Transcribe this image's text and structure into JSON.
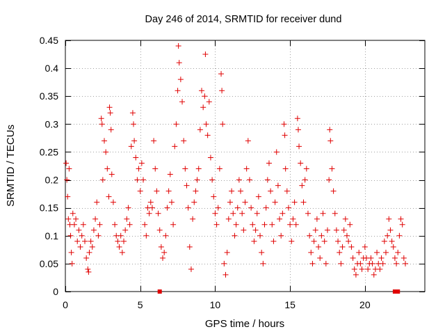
{
  "chart_data": {
    "type": "scatter",
    "title": "Day 246 of 2014, SRMTID for receiver dund",
    "xlabel": "GPS time / hours",
    "ylabel": "SRMTID / TECUs",
    "xlim": [
      0,
      24
    ],
    "ylim": [
      0,
      0.45
    ],
    "xticks": [
      0,
      5,
      10,
      15,
      20
    ],
    "yticks": [
      0,
      0.05,
      0.1,
      0.15,
      0.2,
      0.25,
      0.3,
      0.35,
      0.4,
      0.45
    ],
    "xtick_labels": [
      "0",
      "5",
      "10",
      "15",
      "20"
    ],
    "ytick_labels": [
      "0",
      "0.05",
      "0.1",
      "0.15",
      "0.2",
      "0.25",
      "0.3",
      "0.35",
      "0.4",
      "0.45"
    ],
    "grid": true,
    "marker": "+",
    "color": "#e00000",
    "series": [
      {
        "name": "SRMTID",
        "points": [
          [
            0.05,
            0.23
          ],
          [
            0.1,
            0.2
          ],
          [
            0.15,
            0.17
          ],
          [
            0.2,
            0.13
          ],
          [
            0.25,
            0.22
          ],
          [
            0.3,
            0.12
          ],
          [
            0.35,
            0.1
          ],
          [
            0.4,
            0.07
          ],
          [
            0.45,
            0.05
          ],
          [
            0.5,
            0.14
          ],
          [
            0.6,
            0.12
          ],
          [
            0.7,
            0.13
          ],
          [
            0.8,
            0.09
          ],
          [
            0.9,
            0.11
          ],
          [
            1.0,
            0.08
          ],
          [
            1.1,
            0.1
          ],
          [
            1.2,
            0.12
          ],
          [
            1.3,
            0.09
          ],
          [
            1.4,
            0.06
          ],
          [
            1.5,
            0.04
          ],
          [
            1.55,
            0.035
          ],
          [
            1.6,
            0.07
          ],
          [
            1.7,
            0.09
          ],
          [
            1.8,
            0.08
          ],
          [
            1.9,
            0.11
          ],
          [
            2.0,
            0.13
          ],
          [
            2.1,
            0.16
          ],
          [
            2.2,
            0.1
          ],
          [
            2.3,
            0.12
          ],
          [
            2.4,
            0.31
          ],
          [
            2.45,
            0.3
          ],
          [
            2.5,
            0.2
          ],
          [
            2.6,
            0.27
          ],
          [
            2.7,
            0.25
          ],
          [
            2.8,
            0.22
          ],
          [
            2.9,
            0.17
          ],
          [
            2.95,
            0.33
          ],
          [
            3.0,
            0.32
          ],
          [
            3.05,
            0.29
          ],
          [
            3.1,
            0.21
          ],
          [
            3.2,
            0.16
          ],
          [
            3.3,
            0.12
          ],
          [
            3.4,
            0.1
          ],
          [
            3.5,
            0.09
          ],
          [
            3.6,
            0.08
          ],
          [
            3.7,
            0.1
          ],
          [
            3.8,
            0.07
          ],
          [
            3.9,
            0.09
          ],
          [
            4.0,
            0.11
          ],
          [
            4.1,
            0.13
          ],
          [
            4.2,
            0.15
          ],
          [
            4.3,
            0.12
          ],
          [
            4.4,
            0.26
          ],
          [
            4.5,
            0.32
          ],
          [
            4.55,
            0.3
          ],
          [
            4.6,
            0.27
          ],
          [
            4.7,
            0.24
          ],
          [
            4.8,
            0.2
          ],
          [
            4.9,
            0.22
          ],
          [
            5.0,
            0.18
          ],
          [
            5.1,
            0.23
          ],
          [
            5.2,
            0.2
          ],
          [
            5.3,
            0.12
          ],
          [
            5.4,
            0.1
          ],
          [
            5.5,
            0.15
          ],
          [
            5.6,
            0.14
          ],
          [
            5.7,
            0.16
          ],
          [
            5.8,
            0.15
          ],
          [
            5.9,
            0.27
          ],
          [
            6.0,
            0.22
          ],
          [
            6.1,
            0.18
          ],
          [
            6.2,
            0.14
          ],
          [
            6.3,
            0.11
          ],
          [
            6.4,
            0.08
          ],
          [
            6.5,
            0.06
          ],
          [
            6.6,
            0.07
          ],
          [
            6.7,
            0.1
          ],
          [
            6.8,
            0.15
          ],
          [
            6.9,
            0.18
          ],
          [
            7.0,
            0.21
          ],
          [
            7.1,
            0.16
          ],
          [
            7.2,
            0.12
          ],
          [
            7.3,
            0.26
          ],
          [
            7.4,
            0.3
          ],
          [
            7.5,
            0.36
          ],
          [
            7.55,
            0.44
          ],
          [
            7.6,
            0.41
          ],
          [
            7.7,
            0.38
          ],
          [
            7.8,
            0.34
          ],
          [
            7.9,
            0.27
          ],
          [
            8.0,
            0.22
          ],
          [
            8.1,
            0.19
          ],
          [
            8.2,
            0.15
          ],
          [
            8.3,
            0.08
          ],
          [
            8.4,
            0.04
          ],
          [
            8.5,
            0.13
          ],
          [
            8.6,
            0.16
          ],
          [
            8.7,
            0.18
          ],
          [
            8.8,
            0.2
          ],
          [
            8.9,
            0.22
          ],
          [
            9.0,
            0.29
          ],
          [
            9.1,
            0.36
          ],
          [
            9.2,
            0.33
          ],
          [
            9.3,
            0.35
          ],
          [
            9.35,
            0.425
          ],
          [
            9.4,
            0.3
          ],
          [
            9.5,
            0.28
          ],
          [
            9.6,
            0.34
          ],
          [
            9.7,
            0.24
          ],
          [
            9.8,
            0.2
          ],
          [
            9.9,
            0.17
          ],
          [
            10.0,
            0.14
          ],
          [
            10.1,
            0.12
          ],
          [
            10.2,
            0.15
          ],
          [
            10.3,
            0.22
          ],
          [
            10.4,
            0.39
          ],
          [
            10.45,
            0.36
          ],
          [
            10.5,
            0.3
          ],
          [
            10.6,
            0.05
          ],
          [
            10.7,
            0.03
          ],
          [
            10.8,
            0.07
          ],
          [
            10.9,
            0.13
          ],
          [
            11.0,
            0.16
          ],
          [
            11.1,
            0.18
          ],
          [
            11.2,
            0.14
          ],
          [
            11.3,
            0.1
          ],
          [
            11.4,
            0.12
          ],
          [
            11.5,
            0.15
          ],
          [
            11.6,
            0.2
          ],
          [
            11.7,
            0.18
          ],
          [
            11.8,
            0.14
          ],
          [
            11.9,
            0.11
          ],
          [
            12.0,
            0.16
          ],
          [
            12.1,
            0.22
          ],
          [
            12.2,
            0.27
          ],
          [
            12.3,
            0.2
          ],
          [
            12.4,
            0.15
          ],
          [
            12.5,
            0.12
          ],
          [
            12.6,
            0.09
          ],
          [
            12.7,
            0.11
          ],
          [
            12.8,
            0.14
          ],
          [
            12.9,
            0.17
          ],
          [
            13.0,
            0.1
          ],
          [
            13.1,
            0.07
          ],
          [
            13.2,
            0.05
          ],
          [
            13.3,
            0.12
          ],
          [
            13.4,
            0.15
          ],
          [
            13.5,
            0.2
          ],
          [
            13.6,
            0.23
          ],
          [
            13.7,
            0.18
          ],
          [
            13.8,
            0.12
          ],
          [
            13.9,
            0.09
          ],
          [
            14.0,
            0.16
          ],
          [
            14.1,
            0.25
          ],
          [
            14.2,
            0.19
          ],
          [
            14.3,
            0.13
          ],
          [
            14.4,
            0.1
          ],
          [
            14.5,
            0.14
          ],
          [
            14.6,
            0.3
          ],
          [
            14.65,
            0.28
          ],
          [
            14.7,
            0.22
          ],
          [
            14.8,
            0.18
          ],
          [
            14.9,
            0.15
          ],
          [
            15.0,
            0.12
          ],
          [
            15.1,
            0.09
          ],
          [
            15.2,
            0.13
          ],
          [
            15.3,
            0.16
          ],
          [
            15.4,
            0.12
          ],
          [
            15.5,
            0.31
          ],
          [
            15.55,
            0.29
          ],
          [
            15.6,
            0.26
          ],
          [
            15.7,
            0.23
          ],
          [
            15.8,
            0.19
          ],
          [
            15.9,
            0.16
          ],
          [
            16.0,
            0.2
          ],
          [
            16.1,
            0.22
          ],
          [
            16.2,
            0.14
          ],
          [
            16.3,
            0.1
          ],
          [
            16.4,
            0.07
          ],
          [
            16.5,
            0.05
          ],
          [
            16.6,
            0.09
          ],
          [
            16.7,
            0.11
          ],
          [
            16.8,
            0.13
          ],
          [
            16.9,
            0.08
          ],
          [
            17.0,
            0.06
          ],
          [
            17.1,
            0.1
          ],
          [
            17.2,
            0.14
          ],
          [
            17.3,
            0.09
          ],
          [
            17.4,
            0.05
          ],
          [
            17.5,
            0.11
          ],
          [
            17.6,
            0.2
          ],
          [
            17.65,
            0.29
          ],
          [
            17.7,
            0.27
          ],
          [
            17.8,
            0.22
          ],
          [
            17.9,
            0.18
          ],
          [
            18.0,
            0.14
          ],
          [
            18.1,
            0.11
          ],
          [
            18.2,
            0.09
          ],
          [
            18.3,
            0.07
          ],
          [
            18.4,
            0.05
          ],
          [
            18.5,
            0.08
          ],
          [
            18.6,
            0.11
          ],
          [
            18.7,
            0.13
          ],
          [
            18.8,
            0.1
          ],
          [
            18.9,
            0.09
          ],
          [
            19.0,
            0.12
          ],
          [
            19.1,
            0.08
          ],
          [
            19.2,
            0.06
          ],
          [
            19.3,
            0.04
          ],
          [
            19.4,
            0.03
          ],
          [
            19.5,
            0.05
          ],
          [
            19.6,
            0.07
          ],
          [
            19.7,
            0.05
          ],
          [
            19.8,
            0.04
          ],
          [
            19.9,
            0.06
          ],
          [
            20.0,
            0.08
          ],
          [
            20.1,
            0.06
          ],
          [
            20.2,
            0.04
          ],
          [
            20.3,
            0.05
          ],
          [
            20.4,
            0.06
          ],
          [
            20.5,
            0.05
          ],
          [
            20.6,
            0.03
          ],
          [
            20.7,
            0.04
          ],
          [
            20.8,
            0.07
          ],
          [
            20.9,
            0.05
          ],
          [
            21.0,
            0.04
          ],
          [
            21.1,
            0.06
          ],
          [
            21.2,
            0.05
          ],
          [
            21.3,
            0.09
          ],
          [
            21.4,
            0.07
          ],
          [
            21.5,
            0.1
          ],
          [
            21.6,
            0.13
          ],
          [
            21.7,
            0.11
          ],
          [
            21.8,
            0.09
          ],
          [
            21.9,
            0.08
          ],
          [
            22.0,
            0.06
          ],
          [
            22.1,
            0.05
          ],
          [
            22.2,
            0.07
          ],
          [
            22.3,
            0.1
          ],
          [
            22.4,
            0.13
          ],
          [
            22.5,
            0.12
          ],
          [
            22.6,
            0.06
          ],
          [
            22.7,
            0.05
          ]
        ]
      }
    ],
    "markers_on_axis": [
      6.3,
      22.0,
      22.2
    ]
  }
}
